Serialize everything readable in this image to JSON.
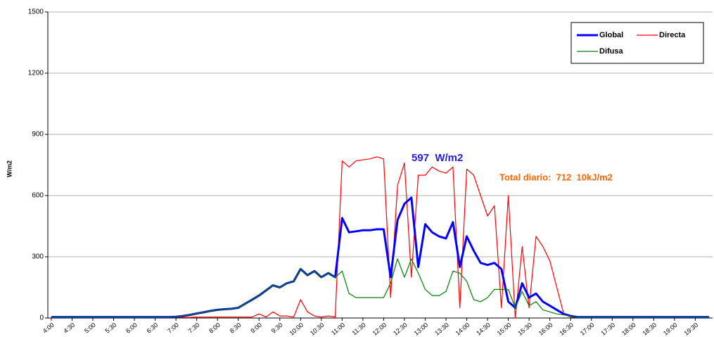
{
  "chart_data": {
    "type": "line",
    "y_label": "W/m2",
    "categories": [
      "4:00",
      null,
      null,
      "4:30",
      null,
      null,
      "5:00",
      null,
      null,
      "5:30",
      null,
      null,
      "6:00",
      null,
      null,
      "6:30",
      null,
      null,
      "7:00",
      null,
      null,
      "7:30",
      null,
      null,
      "8:00",
      null,
      null,
      "8:30",
      null,
      null,
      "9:00",
      null,
      null,
      "9:30",
      null,
      null,
      "10:00",
      null,
      null,
      "10:30",
      null,
      null,
      "11:00",
      null,
      null,
      "11:30",
      null,
      null,
      "12:00",
      null,
      null,
      "12:30",
      null,
      null,
      "13:00",
      null,
      null,
      "13:30",
      null,
      null,
      "14:00",
      null,
      null,
      "14:30",
      null,
      null,
      "15:00",
      null,
      null,
      "15:30",
      null,
      null,
      "16:00",
      null,
      null,
      "16:30",
      null,
      null,
      "17:00",
      null,
      null,
      "17:30",
      null,
      null,
      "18:00",
      null,
      null,
      "18:30",
      null,
      null,
      "19:00",
      null,
      null,
      "19:30",
      null,
      null
    ],
    "series": [
      {
        "name": "Global",
        "color": "#0000ff",
        "values": [
          5,
          5,
          5,
          5,
          5,
          5,
          5,
          5,
          5,
          5,
          5,
          5,
          5,
          5,
          5,
          5,
          5,
          5,
          6,
          10,
          15,
          22,
          28,
          35,
          40,
          43,
          45,
          50,
          70,
          90,
          110,
          135,
          160,
          150,
          170,
          180,
          240,
          210,
          230,
          200,
          220,
          200,
          490,
          420,
          425,
          430,
          430,
          435,
          435,
          200,
          480,
          560,
          590,
          250,
          460,
          420,
          400,
          390,
          470,
          250,
          400,
          330,
          270,
          260,
          270,
          240,
          80,
          50,
          170,
          100,
          120,
          80,
          60,
          40,
          20,
          10,
          5,
          5,
          5,
          5,
          5,
          5,
          5,
          5,
          5,
          5,
          5,
          5,
          5,
          5,
          5,
          5,
          5,
          5,
          5,
          5
        ]
      },
      {
        "name": "Directa",
        "color": "#ff0000",
        "values": [
          3,
          3,
          3,
          3,
          3,
          3,
          3,
          3,
          3,
          3,
          3,
          3,
          3,
          3,
          3,
          3,
          3,
          3,
          3,
          3,
          3,
          5,
          5,
          5,
          5,
          5,
          5,
          5,
          5,
          5,
          20,
          5,
          30,
          10,
          10,
          5,
          90,
          30,
          10,
          5,
          10,
          5,
          770,
          740,
          770,
          775,
          780,
          790,
          780,
          100,
          650,
          760,
          200,
          700,
          700,
          740,
          720,
          710,
          740,
          50,
          730,
          700,
          600,
          500,
          550,
          50,
          600,
          0,
          350,
          50,
          400,
          350,
          280,
          150,
          20,
          5,
          3,
          3,
          3,
          3,
          3,
          3,
          3,
          3,
          3,
          3,
          3,
          3,
          3,
          3,
          3,
          3,
          3,
          3,
          3,
          3
        ]
      },
      {
        "name": "Difusa",
        "color": "#008000",
        "values": [
          5,
          5,
          5,
          5,
          5,
          5,
          5,
          5,
          5,
          5,
          5,
          5,
          5,
          5,
          5,
          5,
          5,
          5,
          6,
          10,
          15,
          22,
          28,
          35,
          40,
          43,
          45,
          50,
          70,
          90,
          110,
          135,
          160,
          150,
          170,
          180,
          240,
          210,
          230,
          200,
          220,
          200,
          230,
          120,
          100,
          100,
          100,
          100,
          100,
          170,
          290,
          200,
          290,
          220,
          140,
          110,
          110,
          130,
          230,
          220,
          180,
          90,
          80,
          100,
          140,
          140,
          140,
          50,
          130,
          60,
          80,
          40,
          30,
          20,
          15,
          8,
          5,
          5,
          5,
          5,
          5,
          5,
          5,
          5,
          5,
          5,
          5,
          5,
          5,
          5,
          5,
          5,
          5,
          5,
          5,
          5
        ]
      }
    ],
    "ylim": [
      0,
      1500
    ],
    "yticks": [
      0,
      300,
      600,
      900,
      1200,
      1500
    ],
    "grid": true,
    "legend": "top-right",
    "annotations": [
      {
        "text": "597  W/m2",
        "color": "#1f1fe0"
      },
      {
        "text": "Total diario:  712  10kJ/m2",
        "color": "#ff6600"
      }
    ]
  }
}
